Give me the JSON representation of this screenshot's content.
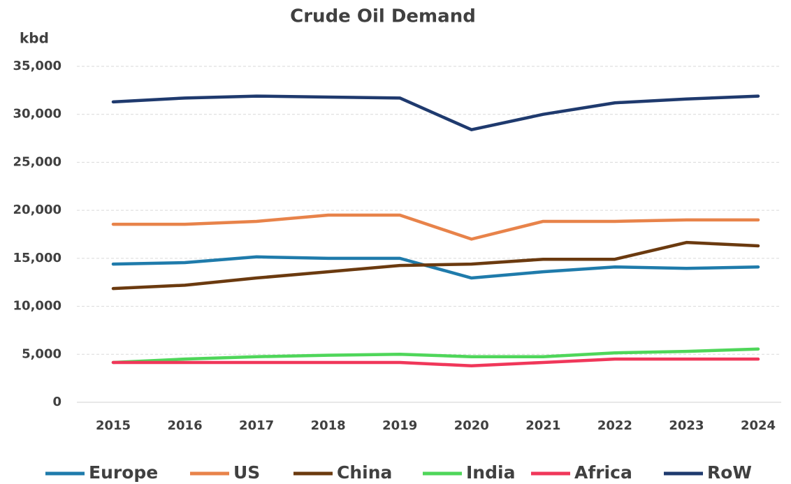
{
  "chart_data": {
    "type": "line",
    "title": "Crude Oil Demand",
    "y_label": "kbd",
    "categories": [
      "2015",
      "2016",
      "2017",
      "2018",
      "2019",
      "2020",
      "2021",
      "2022",
      "2023",
      "2024"
    ],
    "series": [
      {
        "name": "Europe",
        "color": "#1f7bab",
        "values": [
          14400,
          14550,
          15150,
          15000,
          15000,
          12950,
          13600,
          14100,
          13950,
          14100
        ]
      },
      {
        "name": "US",
        "color": "#e8834a",
        "values": [
          18550,
          18550,
          18850,
          19500,
          19500,
          17000,
          18850,
          18850,
          19000,
          19000
        ]
      },
      {
        "name": "China",
        "color": "#6b3a0f",
        "values": [
          11850,
          12200,
          12950,
          13600,
          14250,
          14400,
          14900,
          14900,
          16650,
          16300
        ]
      },
      {
        "name": "India",
        "color": "#4fd65a",
        "values": [
          4150,
          4500,
          4750,
          4900,
          5000,
          4750,
          4750,
          5150,
          5300,
          5550
        ]
      },
      {
        "name": "Africa",
        "color": "#f0375a",
        "values": [
          4150,
          4150,
          4150,
          4150,
          4150,
          3800,
          4150,
          4500,
          4500,
          4500
        ]
      },
      {
        "name": "RoW",
        "color": "#1f3a6e",
        "values": [
          31300,
          31700,
          31900,
          31800,
          31700,
          28400,
          30000,
          31200,
          31600,
          31900
        ]
      }
    ],
    "ylim": [
      0,
      35000
    ],
    "yticks": [
      0,
      {
        "value": 5000,
        "label": "5,000"
      },
      {
        "value": 10000,
        "label": "10,000"
      },
      {
        "value": 15000,
        "label": "15,000"
      },
      {
        "value": 20000,
        "label": "20,000"
      },
      {
        "value": 25000,
        "label": "25,000"
      },
      {
        "value": 30000,
        "label": "30,000"
      },
      {
        "value": 35000,
        "label": "35,000"
      }
    ],
    "grid": true,
    "legend": "bottom"
  }
}
